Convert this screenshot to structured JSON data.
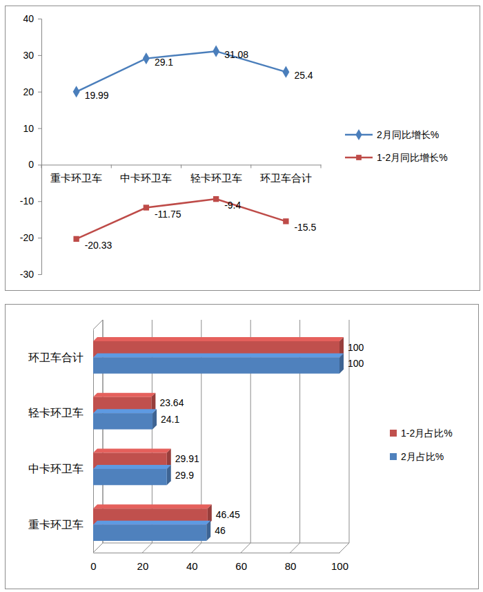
{
  "chart_data": [
    {
      "type": "line",
      "categories": [
        "重卡环卫车",
        "中卡环卫车",
        "轻卡环卫车",
        "环卫车合计"
      ],
      "series": [
        {
          "name": "2月同比增长%",
          "color": "#4a7ebb",
          "marker": "diamond",
          "values": [
            19.99,
            29.1,
            31.08,
            25.4
          ]
        },
        {
          "name": "1-2月同比增长%",
          "color": "#be4b48",
          "marker": "square",
          "values": [
            -20.33,
            -11.75,
            -9.4,
            -15.5
          ]
        }
      ],
      "ylim": [
        -30,
        40
      ],
      "yticks": [
        -30,
        -20,
        -10,
        0,
        10,
        20,
        30,
        40
      ],
      "grid": false,
      "legend": "right",
      "data_labels": true
    },
    {
      "type": "bar",
      "orientation": "horizontal",
      "categories": [
        "重卡环卫车",
        "中卡环卫车",
        "轻卡环卫车",
        "环卫车合计"
      ],
      "series": [
        {
          "name": "1-2月占比%",
          "color": "#c0504d",
          "values": [
            46.45,
            29.91,
            23.64,
            100
          ]
        },
        {
          "name": "2月占比%",
          "color": "#4f81bd",
          "values": [
            46,
            29.9,
            24.1,
            100
          ]
        }
      ],
      "xlim": [
        0,
        100
      ],
      "xticks": [
        0,
        20,
        40,
        60,
        80,
        100
      ],
      "grid": true,
      "legend": "right",
      "data_labels": true
    }
  ]
}
